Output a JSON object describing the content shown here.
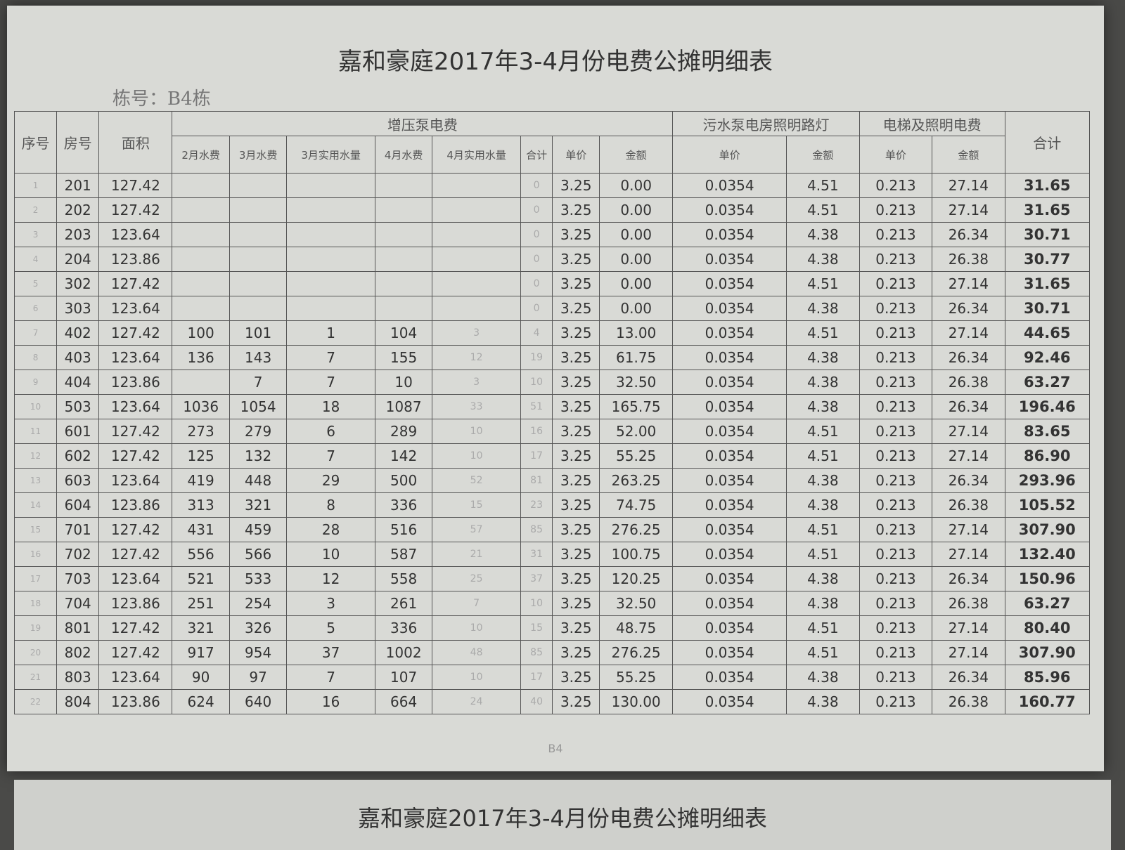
{
  "header": {
    "title": "嘉和豪庭2017年3-4月份电费公摊明细表",
    "building": "栋号：B4栋"
  },
  "table": {
    "group_headers": [
      "序号",
      "房号",
      "面积",
      "增压泵电费",
      "污水泵电房照明路灯",
      "电梯及照明电费",
      "合计"
    ],
    "columns": [
      "2月水费",
      "3月水费",
      "3月实用水量",
      "4月水费",
      "4月实用水量",
      "合计",
      "单价",
      "金额",
      "单价",
      "金额",
      "单价",
      "金额"
    ],
    "rows": [
      [
        1,
        201,
        127.42,
        null,
        null,
        null,
        null,
        null,
        0,
        3.25,
        "0.00",
        0.0354,
        4.51,
        0.213,
        27.14,
        31.65
      ],
      [
        2,
        202,
        127.42,
        null,
        null,
        null,
        null,
        null,
        0,
        3.25,
        "0.00",
        0.0354,
        4.51,
        0.213,
        27.14,
        31.65
      ],
      [
        3,
        203,
        123.64,
        null,
        null,
        null,
        null,
        null,
        0,
        3.25,
        "0.00",
        0.0354,
        4.38,
        0.213,
        26.34,
        30.71
      ],
      [
        4,
        204,
        123.86,
        null,
        null,
        null,
        null,
        null,
        0,
        3.25,
        "0.00",
        0.0354,
        4.38,
        0.213,
        26.38,
        30.77
      ],
      [
        5,
        302,
        127.42,
        null,
        null,
        null,
        null,
        null,
        0,
        3.25,
        "0.00",
        0.0354,
        4.51,
        0.213,
        27.14,
        31.65
      ],
      [
        6,
        303,
        123.64,
        null,
        null,
        null,
        null,
        null,
        0,
        3.25,
        "0.00",
        0.0354,
        4.38,
        0.213,
        26.34,
        30.71
      ],
      [
        7,
        402,
        127.42,
        100,
        101,
        1,
        104,
        3,
        4,
        3.25,
        "13.00",
        0.0354,
        4.51,
        0.213,
        27.14,
        44.65
      ],
      [
        8,
        403,
        123.64,
        136,
        143,
        7,
        155,
        12,
        19,
        3.25,
        61.75,
        0.0354,
        4.38,
        0.213,
        26.34,
        92.46
      ],
      [
        9,
        404,
        123.86,
        null,
        7,
        7,
        10,
        3,
        10,
        3.25,
        "32.50",
        0.0354,
        4.38,
        0.213,
        26.38,
        63.27
      ],
      [
        10,
        503,
        123.64,
        1036,
        1054,
        18,
        1087,
        33,
        51,
        3.25,
        165.75,
        0.0354,
        4.38,
        0.213,
        26.34,
        196.46
      ],
      [
        11,
        601,
        127.42,
        273,
        279,
        6,
        289,
        10,
        16,
        3.25,
        "52.00",
        0.0354,
        4.51,
        0.213,
        27.14,
        83.65
      ],
      [
        12,
        602,
        127.42,
        125,
        132,
        7,
        142,
        10,
        17,
        3.25,
        55.25,
        0.0354,
        4.51,
        0.213,
        27.14,
        "86.90"
      ],
      [
        13,
        603,
        123.64,
        419,
        448,
        29,
        500,
        52,
        81,
        3.25,
        263.25,
        0.0354,
        4.38,
        0.213,
        26.34,
        293.96
      ],
      [
        14,
        604,
        123.86,
        313,
        321,
        8,
        336,
        15,
        23,
        3.25,
        74.75,
        0.0354,
        4.38,
        0.213,
        26.38,
        105.52
      ],
      [
        15,
        701,
        127.42,
        431,
        459,
        28,
        516,
        57,
        85,
        3.25,
        276.25,
        0.0354,
        4.51,
        0.213,
        27.14,
        "307.90"
      ],
      [
        16,
        702,
        127.42,
        556,
        566,
        10,
        587,
        21,
        31,
        3.25,
        100.75,
        0.0354,
        4.51,
        0.213,
        27.14,
        "132.40"
      ],
      [
        17,
        703,
        123.64,
        521,
        533,
        12,
        558,
        25,
        37,
        3.25,
        120.25,
        0.0354,
        4.38,
        0.213,
        26.34,
        150.96
      ],
      [
        18,
        704,
        123.86,
        251,
        254,
        3,
        261,
        7,
        10,
        3.25,
        "32.50",
        0.0354,
        4.38,
        0.213,
        26.38,
        63.27
      ],
      [
        19,
        801,
        127.42,
        321,
        326,
        5,
        336,
        10,
        15,
        3.25,
        48.75,
        0.0354,
        4.51,
        0.213,
        27.14,
        "80.40"
      ],
      [
        20,
        802,
        127.42,
        917,
        954,
        37,
        1002,
        48,
        85,
        3.25,
        276.25,
        0.0354,
        4.51,
        0.213,
        27.14,
        "307.90"
      ],
      [
        21,
        803,
        123.64,
        90,
        97,
        7,
        107,
        10,
        17,
        3.25,
        55.25,
        0.0354,
        4.38,
        0.213,
        26.34,
        85.96
      ],
      [
        22,
        804,
        123.86,
        624,
        640,
        16,
        664,
        24,
        40,
        3.25,
        "130.00",
        0.0354,
        4.38,
        0.213,
        26.38,
        160.77
      ]
    ]
  },
  "footer": {
    "page_label": "B4",
    "next_title": "嘉和豪庭2017年3-4月份电费公摊明细表"
  }
}
